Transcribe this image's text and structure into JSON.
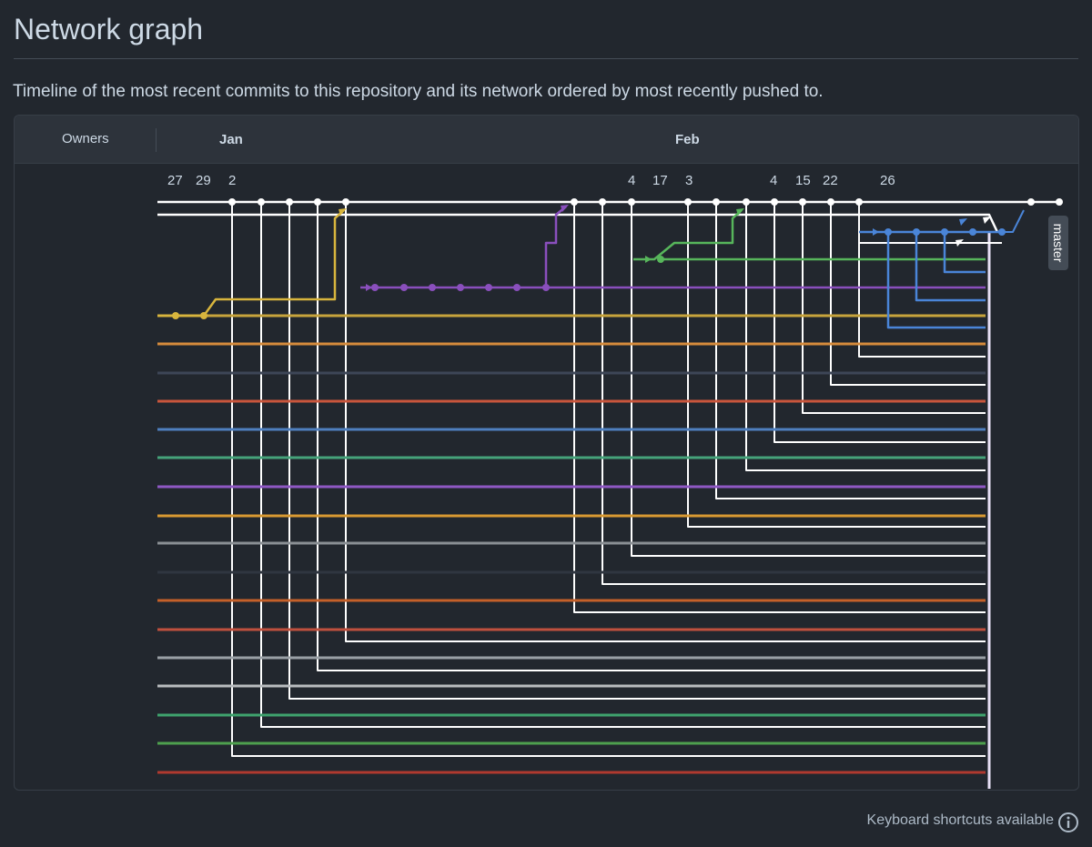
{
  "page": {
    "title": "Network graph",
    "description": "Timeline of the most recent commits to this repository and its network ordered by most recently pushed to."
  },
  "graph": {
    "owners_label": "Owners",
    "months": [
      "Jan",
      "Feb"
    ],
    "days": [
      "27",
      "29",
      "2",
      "4",
      "17",
      "3",
      "4",
      "15",
      "22",
      "26"
    ],
    "branch_label": "master",
    "fork_colors": [
      "#c8a43c",
      "#d68b3c",
      "#3d4657",
      "#c9563c",
      "#4f7fbf",
      "#45a37a",
      "#8f58c4",
      "#d99a32",
      "#8a8f94",
      "#2f3640",
      "#c56029",
      "#c0503e",
      "#9aa0a6",
      "#b9bcbf",
      "#3fa36d",
      "#4ea04e",
      "#b0392f"
    ],
    "feature_colors": {
      "blue": "#4a85d8",
      "green": "#57b65b",
      "purple": "#8a4fbd",
      "yellow": "#d8b53d",
      "master": "#ffffff"
    }
  },
  "footer": {
    "shortcuts_label": "Keyboard shortcuts available"
  }
}
